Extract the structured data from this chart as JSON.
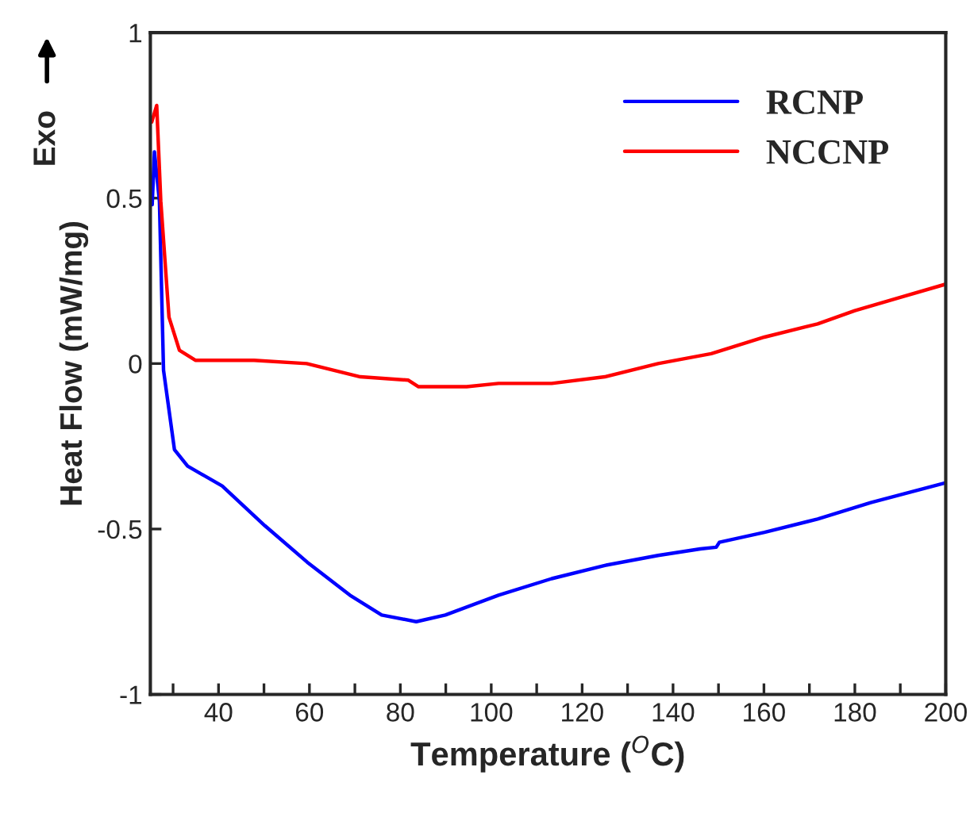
{
  "chart_data": {
    "type": "line",
    "xlabel": "Temperature ($^{O}$C)",
    "ylabel": "Heat Flow (mW/mg)",
    "annotations": [
      "Exo"
    ],
    "xlim": [
      25,
      200
    ],
    "ylim": [
      -1,
      1
    ],
    "xticks": [
      {
        "value": 30,
        "label": null
      },
      40,
      {
        "value": 50,
        "label": null
      },
      60,
      {
        "value": 70,
        "label": null
      },
      80,
      {
        "value": 90,
        "label": null
      },
      100,
      {
        "value": 110,
        "label": null
      },
      120,
      {
        "value": 130,
        "label": null
      },
      140,
      {
        "value": 150,
        "label": null
      },
      160,
      {
        "value": 170,
        "label": null
      },
      180,
      {
        "value": 190,
        "label": null
      },
      200
    ],
    "yticks": [
      -1,
      -0.5,
      0,
      0.5,
      1
    ],
    "legend": "top right",
    "grid": false,
    "marker": "none",
    "line_style": "solid",
    "series": [
      {
        "name": "RCNP",
        "color": "#0000ff",
        "x": [
          25.4,
          25.9,
          27,
          27.9,
          30.3,
          33.2,
          40.8,
          50.2,
          59.5,
          68.9,
          75.9,
          83.5,
          89.9,
          101.6,
          113.3,
          125,
          136.7,
          146,
          149.5,
          150.2,
          160.1,
          171.8,
          183.5,
          200
        ],
        "values": [
          0.48,
          0.64,
          0.49,
          -0.02,
          -0.26,
          -0.31,
          -0.37,
          -0.49,
          -0.6,
          -0.7,
          -0.76,
          -0.78,
          -0.76,
          -0.7,
          -0.65,
          -0.61,
          -0.58,
          -0.56,
          -0.555,
          -0.54,
          -0.51,
          -0.47,
          -0.42,
          -0.36
        ]
      },
      {
        "name": "NCCNP",
        "color": "#ff0000",
        "x": [
          25.3,
          26.4,
          27.3,
          29.1,
          31.4,
          34.9,
          47.8,
          59.4,
          71.2,
          81.7,
          84,
          94.6,
          101.6,
          113.3,
          125,
          136.7,
          148.4,
          160.1,
          171.8,
          180,
          190,
          200
        ],
        "values": [
          0.73,
          0.78,
          0.49,
          0.14,
          0.04,
          0.01,
          0.01,
          0.0,
          -0.04,
          -0.05,
          -0.07,
          -0.07,
          -0.06,
          -0.06,
          -0.04,
          0.0,
          0.03,
          0.08,
          0.12,
          0.16,
          0.2,
          0.24
        ]
      }
    ]
  }
}
